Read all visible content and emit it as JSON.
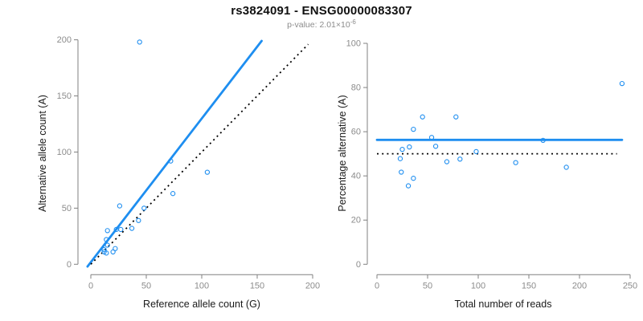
{
  "header": {
    "title": "rs3824091 - ENSG00000083307",
    "subtitle_prefix": "p-value: ",
    "subtitle_mantissa": "2.01×10",
    "subtitle_exponent": "-6"
  },
  "colors": {
    "accent_blue": "#1e8ef0",
    "axis_gray": "#808080",
    "tick_label_gray": "#8c8c8c",
    "axis_title_black": "#1a1a1a",
    "dotted_black": "#000000"
  },
  "chart_data": [
    {
      "type": "scatter",
      "panel": "left",
      "xlabel": "Reference allele count (G)",
      "ylabel": "Alternative allele count (A)",
      "xlim": [
        0,
        200
      ],
      "ylim": [
        0,
        200
      ],
      "xticks": [
        0,
        50,
        100,
        150,
        200
      ],
      "yticks": [
        0,
        50,
        100,
        150,
        200
      ],
      "grid": false,
      "points": [
        [
          44,
          198
        ],
        [
          72,
          92
        ],
        [
          105,
          82
        ],
        [
          74,
          63
        ],
        [
          26,
          52
        ],
        [
          48,
          50
        ],
        [
          43,
          39
        ],
        [
          37,
          32
        ],
        [
          23,
          31
        ],
        [
          27,
          31
        ],
        [
          15,
          30
        ],
        [
          14,
          22
        ],
        [
          15,
          17
        ],
        [
          22,
          14
        ],
        [
          12,
          13
        ],
        [
          12,
          11
        ],
        [
          20,
          11
        ],
        [
          14,
          10
        ]
      ],
      "lines": [
        {
          "name": "regression-line",
          "style": "solid",
          "color": "blue",
          "points": [
            [
              -3,
              -2
            ],
            [
              154,
              199
            ]
          ]
        },
        {
          "name": "identity-line",
          "style": "dotted",
          "color": "black",
          "points": [
            [
              0,
              0
            ],
            [
              196,
              196
            ]
          ]
        }
      ]
    },
    {
      "type": "scatter",
      "panel": "right",
      "xlabel": "Total number of reads",
      "ylabel": "Percentage alternative (A)",
      "xlim": [
        0,
        250
      ],
      "ylim": [
        0,
        100
      ],
      "xticks": [
        0,
        50,
        100,
        150,
        200,
        250
      ],
      "yticks": [
        0,
        20,
        40,
        60,
        80,
        100
      ],
      "grid": false,
      "points": [
        [
          242,
          81.8
        ],
        [
          45,
          66.7
        ],
        [
          78,
          66.7
        ],
        [
          36,
          61.1
        ],
        [
          54,
          57.4
        ],
        [
          164,
          56.1
        ],
        [
          58,
          53.4
        ],
        [
          32,
          53.1
        ],
        [
          25,
          52.0
        ],
        [
          98,
          51.0
        ],
        [
          23,
          47.8
        ],
        [
          82,
          47.6
        ],
        [
          69,
          46.4
        ],
        [
          137,
          46.0
        ],
        [
          187,
          43.9
        ],
        [
          24,
          41.7
        ],
        [
          36,
          38.9
        ],
        [
          31,
          35.5
        ]
      ],
      "lines": [
        {
          "name": "mean-line",
          "style": "solid",
          "color": "blue",
          "points": [
            [
              0,
              56.3
            ],
            [
              242,
              56.3
            ]
          ]
        },
        {
          "name": "fifty-percent-line",
          "style": "dotted",
          "color": "black",
          "points": [
            [
              0,
              50
            ],
            [
              237,
              50
            ]
          ]
        }
      ]
    }
  ]
}
